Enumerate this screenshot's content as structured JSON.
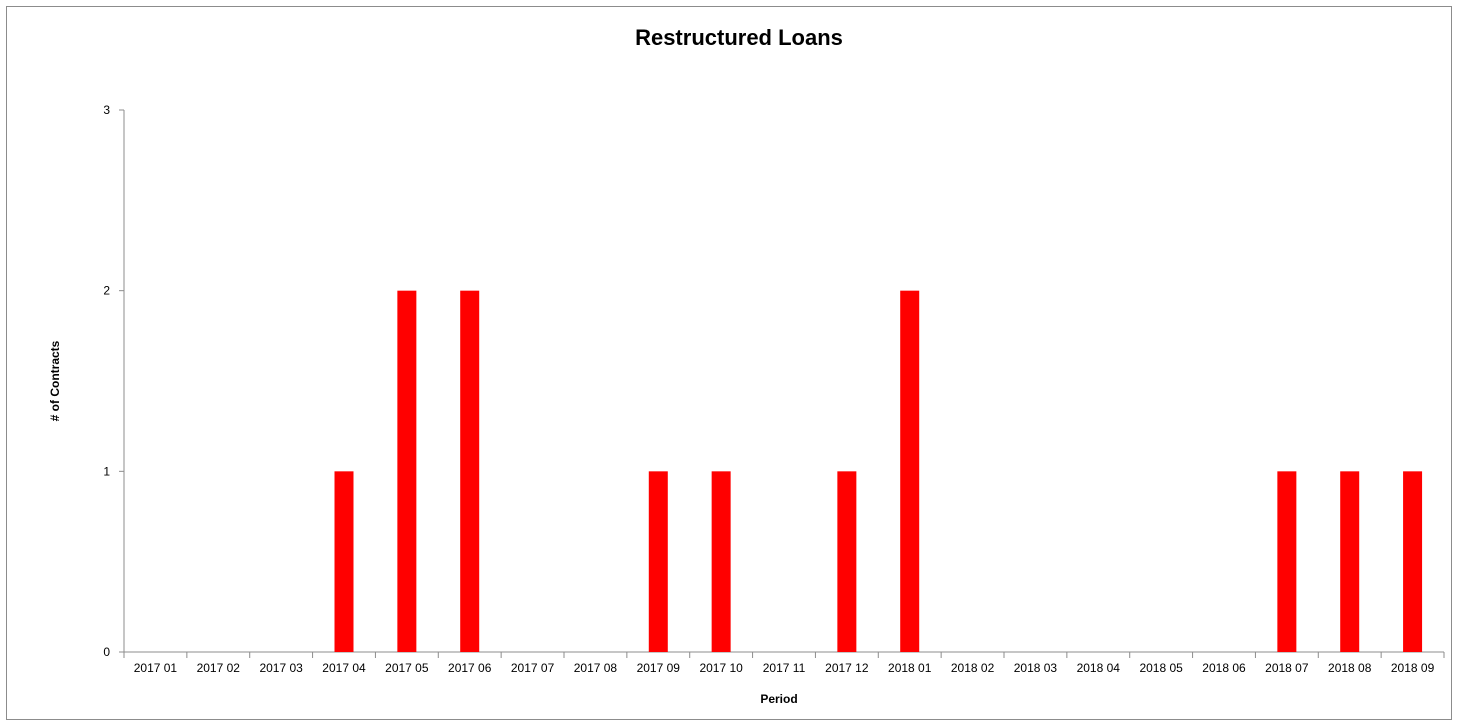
{
  "chart_data": {
    "type": "bar",
    "title": "Restructured Loans",
    "xlabel": "Period",
    "ylabel": "# of Contracts",
    "categories": [
      "2017 01",
      "2017 02",
      "2017 03",
      "2017 04",
      "2017 05",
      "2017 06",
      "2017 07",
      "2017 08",
      "2017 09",
      "2017 10",
      "2017 11",
      "2017 12",
      "2018 01",
      "2018 02",
      "2018 03",
      "2018 04",
      "2018 05",
      "2018 06",
      "2018 07",
      "2018 08",
      "2018 09"
    ],
    "values": [
      0,
      0,
      0,
      1,
      2,
      2,
      0,
      0,
      1,
      1,
      0,
      1,
      2,
      0,
      0,
      0,
      0,
      0,
      1,
      1,
      1
    ],
    "ylim": [
      0,
      3
    ],
    "yticks": [
      "0",
      "1",
      "2",
      "3"
    ],
    "bar_color": "#ff0000",
    "grid": false,
    "legend": "none"
  }
}
